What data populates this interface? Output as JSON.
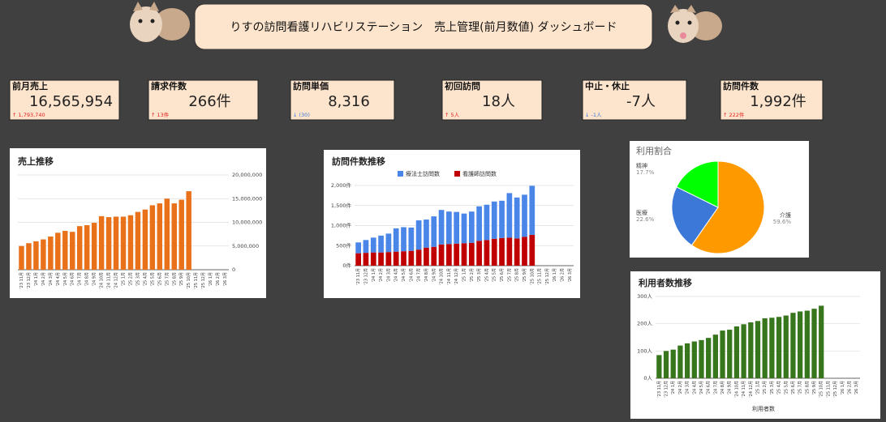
{
  "header": {
    "title": "りすの訪問看護リハビリステーション　売上管理(前月数値) ダッシュボード"
  },
  "kpis": [
    {
      "label": "前月売上",
      "value": "16,565,954",
      "change": "↑ 1,793,740",
      "change_color": "#e02020"
    },
    {
      "label": "請求件数",
      "value": "266件",
      "change": "↑ 13件",
      "change_color": "#e02020"
    },
    {
      "label": "訪問単価",
      "value": "8,316",
      "change": "↓ (30)",
      "change_color": "#3c78d8"
    },
    {
      "label": "初回訪問",
      "value": "18人",
      "change": "↑ 5人",
      "change_color": "#e02020"
    },
    {
      "label": "中止・休止",
      "value": "-7人",
      "change": "↓ -1人",
      "change_color": "#3c78d8"
    },
    {
      "label": "訪問件数",
      "value": "1,992件",
      "change": "↑ 222件",
      "change_color": "#e02020"
    }
  ],
  "chart_data": [
    {
      "type": "bar",
      "title": "売上推移",
      "y_axis_side": "right",
      "grid": true,
      "categories": [
        "'23 11月",
        "'23 12月",
        "'24 1月",
        "'24 2月",
        "'24 3月",
        "'24 4月",
        "'24 5月",
        "'24 6月",
        "'24 7月",
        "'24 8月",
        "'24 9月",
        "'24 10月",
        "'24 11月",
        "'24 12月",
        "'25 1月",
        "'25 2月",
        "'25 3月",
        "'25 4月",
        "'25 5月",
        "'25 6月",
        "'25 7月",
        "'25 8月",
        "'25 9月",
        "'25 10月",
        "'25 11月",
        "'25 12月",
        "'26 1月",
        "'26 2月",
        "'26 3月"
      ],
      "series": [
        {
          "color": "#e8711a",
          "values": [
            5000000,
            5600000,
            6000000,
            6400000,
            7000000,
            7800000,
            8200000,
            8000000,
            9200000,
            9400000,
            9900000,
            11300000,
            11100000,
            11200000,
            11200000,
            11500000,
            12200000,
            12700000,
            13600000,
            14000000,
            15000000,
            14000000,
            14772214,
            16565954,
            null,
            null,
            null,
            null,
            null
          ]
        }
      ],
      "ylim": [
        0,
        20000000
      ],
      "yticks": [
        0,
        {
          "value": 5000000,
          "label": "5,000,000"
        },
        {
          "value": 10000000,
          "label": "10,000,000"
        },
        {
          "value": 15000000,
          "label": "15,000,000"
        },
        {
          "value": 20000000,
          "label": "20,000,000"
        }
      ]
    },
    {
      "type": "bar",
      "title": "訪問件数推移",
      "stacked": true,
      "legend": "top",
      "y_axis_side": "left",
      "grid": true,
      "categories": [
        "'23 11月",
        "'23 12月",
        "'24 1月",
        "'24 2月",
        "'24 3月",
        "'24 4月",
        "'24 5月",
        "'24 6月",
        "'24 7月",
        "'24 8月",
        "'24 9月",
        "'24 10月",
        "'24 11月",
        "'24 12月",
        "'25 1月",
        "'25 2月",
        "'25 3月",
        "'25 4月",
        "'25 5月",
        "'25 6月",
        "'25 7月",
        "'25 8月",
        "'25 9月",
        "'25 10月",
        "'25 11月",
        "'25 12月",
        "'26 1月",
        "'26 2月",
        "'26 3月"
      ],
      "series": [
        {
          "name": "療法士訪問数",
          "color": "#4a86e8",
          "values": [
            270,
            320,
            370,
            420,
            460,
            580,
            600,
            580,
            730,
            700,
            760,
            860,
            810,
            790,
            740,
            780,
            860,
            880,
            930,
            930,
            1110,
            1020,
            1050,
            1222,
            null,
            null,
            null,
            null,
            null
          ]
        },
        {
          "name": "看護師訪問数",
          "color": "#c00000",
          "values": [
            310,
            320,
            330,
            330,
            340,
            350,
            360,
            370,
            400,
            450,
            470,
            530,
            540,
            550,
            560,
            570,
            620,
            640,
            670,
            690,
            700,
            680,
            720,
            770,
            null,
            null,
            null,
            null,
            null
          ]
        }
      ],
      "ylim": [
        0,
        2000
      ],
      "yticks": [
        {
          "value": 0,
          "label": "0件"
        },
        {
          "value": 500,
          "label": "500件"
        },
        {
          "value": 1000,
          "label": "1,000件"
        },
        {
          "value": 1500,
          "label": "1,500件"
        },
        {
          "value": 2000,
          "label": "2,000件"
        }
      ]
    },
    {
      "type": "pie",
      "title": "利用割合",
      "categories": [
        "介護",
        "医療",
        "精神"
      ],
      "values": [
        59.6,
        22.6,
        17.7
      ],
      "value_labels": [
        "59.6%",
        "22.6%",
        "17.7%"
      ],
      "colors": [
        "#ff9900",
        "#3c78d8",
        "#00ff00"
      ]
    },
    {
      "type": "bar",
      "title": "利用者数推移",
      "y_axis_side": "left",
      "grid": true,
      "x_label": "利用者数",
      "categories": [
        "'23 11月",
        "'23 12月",
        "'24 1月",
        "'24 2月",
        "'24 3月",
        "'24 4月",
        "'24 5月",
        "'24 6月",
        "'24 7月",
        "'24 8月",
        "'24 9月",
        "'24 10月",
        "'24 11月",
        "'24 12月",
        "'25 1月",
        "'25 2月",
        "'25 3月",
        "'25 4月",
        "'25 5月",
        "'25 6月",
        "'25 7月",
        "'25 8月",
        "'25 9月",
        "'25 10月",
        "'25 11月",
        "'25 12月",
        "'26 1月",
        "'26 2月",
        "'26 3月"
      ],
      "series": [
        {
          "color": "#38761d",
          "values": [
            85,
            100,
            105,
            120,
            128,
            135,
            140,
            148,
            160,
            175,
            178,
            190,
            198,
            205,
            210,
            220,
            222,
            225,
            230,
            240,
            245,
            248,
            255,
            266,
            null,
            null,
            null,
            null,
            null
          ]
        }
      ],
      "ylim": [
        0,
        300
      ],
      "yticks": [
        {
          "value": 0,
          "label": "0人"
        },
        {
          "value": 100,
          "label": "100人"
        },
        {
          "value": 200,
          "label": "200人"
        },
        {
          "value": 300,
          "label": "300人"
        }
      ]
    }
  ]
}
